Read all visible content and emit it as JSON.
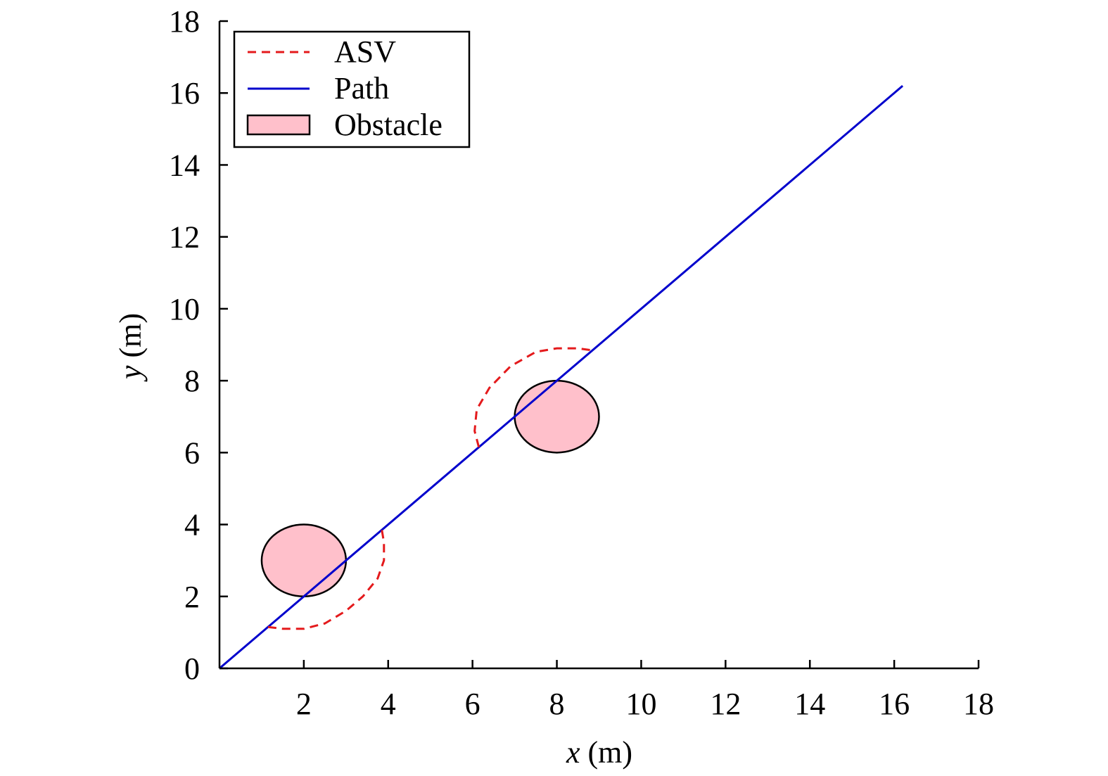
{
  "chart_data": {
    "type": "line",
    "xlabel_var": "x",
    "xlabel_unit": " (m)",
    "ylabel_var": "y",
    "ylabel_unit": " (m)",
    "xlim": [
      0,
      18
    ],
    "ylim": [
      0,
      18
    ],
    "xticks": [
      2,
      4,
      6,
      8,
      10,
      12,
      14,
      16,
      18
    ],
    "yticks": [
      0,
      2,
      4,
      6,
      8,
      10,
      12,
      14,
      16,
      18
    ],
    "grid": false,
    "legend_position": "top-left",
    "legend": [
      "ASV",
      "Path",
      "Obstacle"
    ],
    "colors": {
      "asv": "#e41a1c",
      "path": "#0000cc",
      "obstacle": "#ffc0cb",
      "outline": "#000000"
    },
    "series": [
      {
        "name": "Path",
        "style": "solid",
        "x": [
          0,
          16.2
        ],
        "y": [
          0,
          16.2
        ]
      },
      {
        "name": "ASV",
        "style": "dashed",
        "x": [
          1.15,
          1.5,
          2.0,
          2.5,
          3.0,
          3.4,
          3.75,
          3.9,
          3.9,
          3.85
        ],
        "y": [
          1.15,
          1.1,
          1.1,
          1.25,
          1.6,
          2.0,
          2.5,
          3.0,
          3.5,
          3.85
        ]
      },
      {
        "name": "ASV",
        "style": "dashed",
        "x": [
          6.15,
          6.05,
          6.1,
          6.4,
          6.9,
          7.5,
          8.0,
          8.5,
          8.8
        ],
        "y": [
          6.15,
          6.6,
          7.2,
          7.8,
          8.4,
          8.8,
          8.9,
          8.9,
          8.85
        ]
      }
    ],
    "obstacles": [
      {
        "name": "Obstacle",
        "cx": 2,
        "cy": 3,
        "r": 1
      },
      {
        "name": "Obstacle",
        "cx": 8,
        "cy": 7,
        "r": 1
      }
    ]
  }
}
